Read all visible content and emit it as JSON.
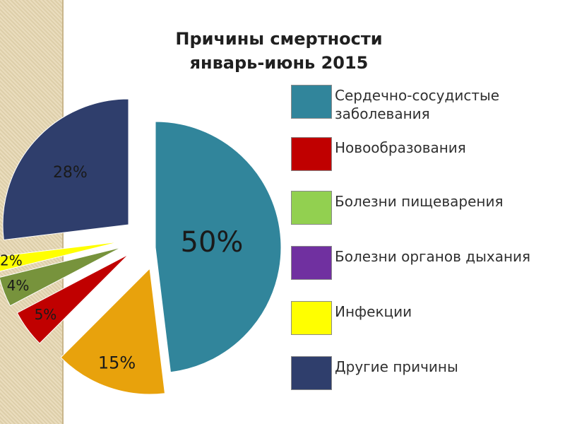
{
  "title_lines": [
    "Причины смертности",
    "январь-июнь 2015"
  ],
  "chart_data": {
    "type": "pie",
    "title": "Причины смертности январь-июнь 2015",
    "series": [
      {
        "name": "Сердечно-сосудистые заболевания",
        "value": 50,
        "label": "50%",
        "color": "#31859b"
      },
      {
        "name": "Новообразования",
        "value": 5,
        "label": "5%",
        "color": "#c00000"
      },
      {
        "name": "Болезни пищеварения",
        "value": 4,
        "label": "4%",
        "color": "#77933c"
      },
      {
        "name": "Болезни органов дыхания",
        "value": 0,
        "label": "",
        "color": "#7030a0"
      },
      {
        "name": "Инфекции",
        "value": 2,
        "label": "2%",
        "color": "#ffff00"
      },
      {
        "name": "Другие причины",
        "value": 28,
        "label": "28%",
        "color": "#2f3e6c"
      }
    ],
    "extra_slice": {
      "value": 15,
      "label": "15%",
      "color": "#e8a20c"
    },
    "legend_position": "right"
  },
  "legend": [
    {
      "label": "Сердечно-сосудистые заболевания",
      "color": "#31859b"
    },
    {
      "label": "Новообразования",
      "color": "#c00000"
    },
    {
      "label": "Болезни пищеварения",
      "color": "#92d050"
    },
    {
      "label": "Болезни органов дыхания",
      "color": "#7030a0"
    },
    {
      "label": "Инфекции",
      "color": "#ffff00"
    },
    {
      "label": "Другие причины",
      "color": "#2f3e6c"
    }
  ]
}
